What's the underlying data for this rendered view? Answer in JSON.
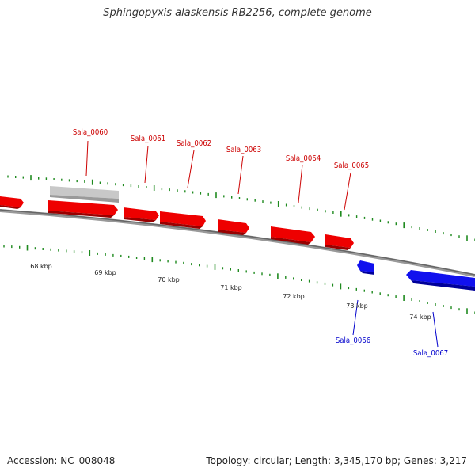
{
  "title": "Sphingopyxis alaskensis RB2256, complete genome",
  "footer": {
    "accession": "Accession: NC_008048",
    "summary": "Topology: circular; Length: 3,345,170 bp; Genes: 3,217"
  },
  "colors": {
    "forward_gene": "#ee0000",
    "reverse_gene": "#1111ee",
    "pseudo_gene": "#c8c8c8",
    "tick": "#1f8a1f",
    "backbone": "#777777",
    "kbp_text": "#222222"
  },
  "kbp_labels": [
    "68 kbp",
    "69 kbp",
    "70 kbp",
    "71 kbp",
    "72 kbp",
    "73 kbp",
    "74 kbp"
  ],
  "gene_labels": {
    "forward": [
      "Sala_0060",
      "Sala_0061",
      "Sala_0062",
      "Sala_0063",
      "Sala_0064",
      "Sala_0065"
    ],
    "reverse": [
      "Sala_0066",
      "Sala_0067"
    ]
  }
}
